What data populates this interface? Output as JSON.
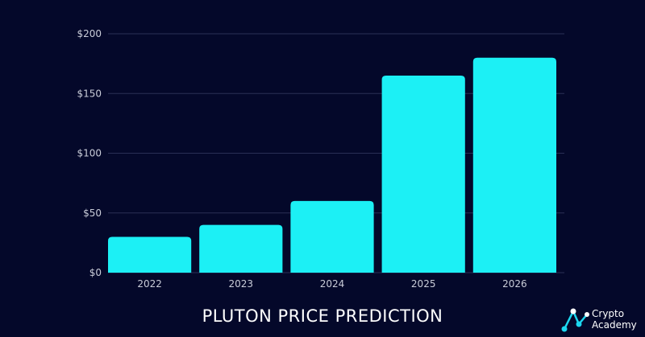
{
  "chart_data": {
    "type": "bar",
    "title": "PLUTON PRICE PREDICTION",
    "categories": [
      "2022",
      "2023",
      "2024",
      "2025",
      "2026"
    ],
    "values": [
      30,
      40,
      60,
      165,
      180
    ],
    "ylim": [
      0,
      200
    ],
    "yticks": [
      "$0",
      "$50",
      "$100",
      "$150",
      "$200"
    ],
    "ytick_values": [
      0,
      50,
      100,
      150,
      200
    ],
    "grid": true,
    "bar_color": "#1cf0f5"
  },
  "logo": {
    "line1": "Crypto",
    "line2": "Academy"
  },
  "colors": {
    "background": "#04082a",
    "grid": "#2a2f55",
    "logo_accent": "#1cd7f0"
  }
}
